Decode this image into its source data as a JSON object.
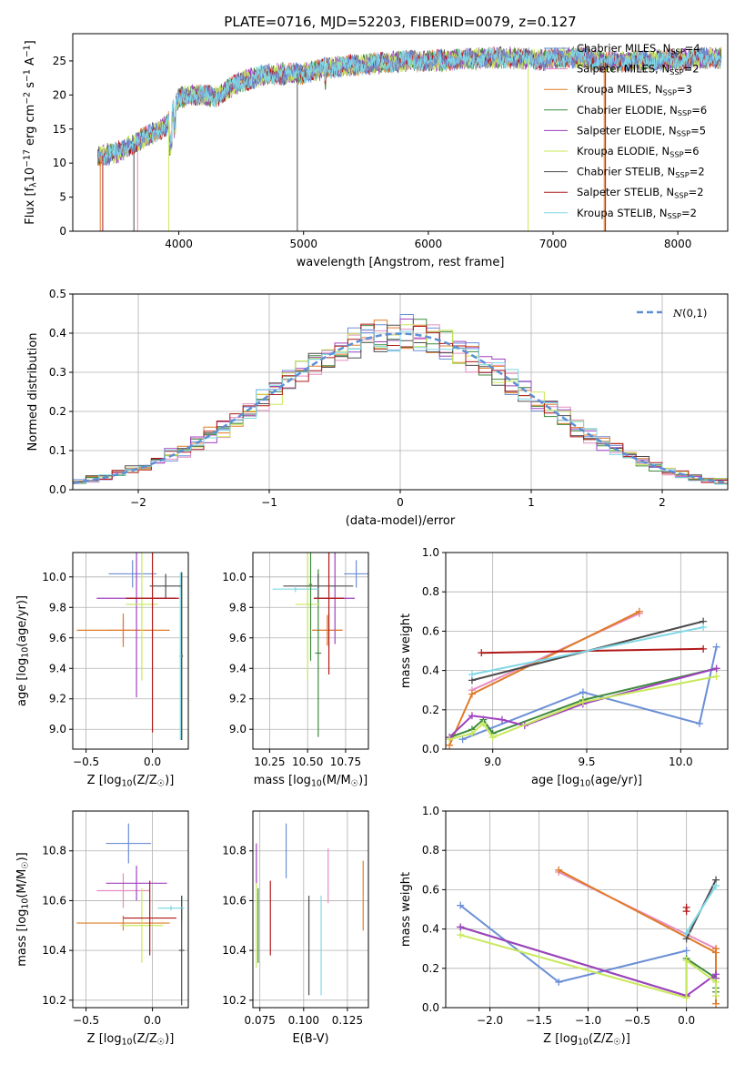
{
  "figure": {
    "title": "PLATE=0716, MJD=52203, FIBERID=0079, z=0.127"
  },
  "series_styles": [
    {
      "name": "Chabrier MILES, N$_{SSP}$=4",
      "color": "#6b8fd6"
    },
    {
      "name": "Salpeter MILES, N$_{SSP}$=2",
      "color": "#e58ec1"
    },
    {
      "name": "Kroupa MILES, N$_{SSP}$=3",
      "color": "#e07b28"
    },
    {
      "name": "Chabrier ELODIE, N$_{SSP}$=6",
      "color": "#3e8a3e"
    },
    {
      "name": "Salpeter ELODIE, N$_{SSP}$=5",
      "color": "#a040c0"
    },
    {
      "name": "Kroupa ELODIE, N$_{SSP}$=6",
      "color": "#c9e85a"
    },
    {
      "name": "Chabrier STELIB, N$_{SSP}$=2",
      "color": "#4d4d4d"
    },
    {
      "name": "Salpeter STELIB, N$_{SSP}$=2",
      "color": "#b01818"
    },
    {
      "name": "Kroupa STELIB, N$_{SSP}$=2",
      "color": "#7fd8e6"
    }
  ],
  "chart_data": [
    {
      "id": "spectrum",
      "type": "line",
      "xlabel": "wavelength [Angstrom, rest frame]",
      "ylabel": "Flux [f$_\\lambda$10$^{-17}$ erg cm$^{-2}$ s$^{-1}$ A$^{-1}$]",
      "xlim": [
        3150,
        8400
      ],
      "ylim": [
        0,
        29
      ],
      "xticks": [
        4000,
        5000,
        6000,
        7000,
        8000
      ],
      "yticks": [
        0,
        5,
        10,
        15,
        20,
        25
      ],
      "grid": false,
      "legend": "right",
      "x": [
        3350,
        3500,
        3700,
        3900,
        4000,
        4100,
        4300,
        4500,
        4700,
        5000,
        5200,
        5500,
        5800,
        6000,
        6300,
        6600,
        6900,
        7200,
        7400,
        7700,
        8000,
        8300
      ],
      "y": [
        11.0,
        11.5,
        13.5,
        15.5,
        19.5,
        20.0,
        19.8,
        22.0,
        23.0,
        23.2,
        24.0,
        24.5,
        25.0,
        25.0,
        25.3,
        25.5,
        25.2,
        25.6,
        24.8,
        25.0,
        25.2,
        25.5
      ]
    },
    {
      "id": "residual_hist",
      "type": "line",
      "xlabel": "(data-model)/error",
      "ylabel": "Normed distribution",
      "xlim": [
        -2.5,
        2.5
      ],
      "ylim": [
        0,
        0.5
      ],
      "xticks": [
        -2,
        -1,
        0,
        1,
        2
      ],
      "yticks": [
        0.0,
        0.1,
        0.2,
        0.3,
        0.4,
        0.5
      ],
      "grid": true,
      "legend": "top-right",
      "legend_label": "$\\mathcal{N}(0,1)$",
      "histogram_bin_width": 0.1
    },
    {
      "id": "age_vs_Z",
      "type": "scatter",
      "xlabel": "Z [log$_{10}$(Z/Z$_\\odot$)]",
      "ylabel": "age  [log$_{10}$(age/yr)]",
      "xlim": [
        -0.6,
        0.27
      ],
      "ylim": [
        8.87,
        10.16
      ],
      "xticks": [
        -0.5,
        0.0
      ],
      "yticks": [
        9.0,
        9.2,
        9.4,
        9.6,
        9.8,
        10.0
      ],
      "grid": true,
      "points": [
        {
          "s": 0,
          "x": -0.15,
          "y": 10.02,
          "xerr": 0.18,
          "yerr": 0.09
        },
        {
          "s": 1,
          "x": -0.22,
          "y": 9.65,
          "xerr": 0.12,
          "yerr": 0.08
        },
        {
          "s": 2,
          "x": -0.22,
          "y": 9.65,
          "xerr": 0.35,
          "yerr": 0.11
        },
        {
          "s": 3,
          "x": 0.22,
          "y": 9.48,
          "xerr": 0.01,
          "yerr": 0.55
        },
        {
          "s": 4,
          "x": -0.12,
          "y": 9.86,
          "xerr": 0.3,
          "yerr": 0.65
        },
        {
          "s": 5,
          "x": -0.08,
          "y": 9.82,
          "xerr": 0.12,
          "yerr": 0.5
        },
        {
          "s": 6,
          "x": 0.22,
          "y": 9.48,
          "xerr": 0.01,
          "yerr": 0.55
        },
        {
          "s": 7,
          "x": 0.0,
          "y": 9.86,
          "xerr": 0.2,
          "yerr": 0.88
        },
        {
          "s": 8,
          "x": 0.21,
          "y": 9.48,
          "xerr": 0.01,
          "yerr": 0.55
        },
        {
          "s": 6,
          "x": 0.1,
          "y": 9.94,
          "xerr": 0.12,
          "yerr": 0.08
        }
      ]
    },
    {
      "id": "age_vs_mass",
      "type": "scatter",
      "xlabel": "mass [log$_{10}$(M/M$_\\odot$)]",
      "ylabel": "",
      "xlim": [
        10.14,
        10.9
      ],
      "ylim": [
        8.87,
        10.16
      ],
      "xticks": [
        10.25,
        10.5,
        10.75
      ],
      "yticks": [
        9.0,
        9.2,
        9.4,
        9.6,
        9.8,
        10.0
      ],
      "grid": true,
      "points": [
        {
          "s": 0,
          "x": 10.82,
          "y": 10.02,
          "xerr": 0.08,
          "yerr": 0.09
        },
        {
          "s": 1,
          "x": 10.63,
          "y": 9.65,
          "xerr": 0.1,
          "yerr": 0.1
        },
        {
          "s": 2,
          "x": 10.63,
          "y": 9.65,
          "xerr": 0.1,
          "yerr": 0.1
        },
        {
          "s": 3,
          "x": 10.57,
          "y": 9.5,
          "xerr": 0.02,
          "yerr": 0.55
        },
        {
          "s": 4,
          "x": 10.68,
          "y": 9.86,
          "xerr": 0.13,
          "yerr": 0.3
        },
        {
          "s": 5,
          "x": 10.5,
          "y": 9.82,
          "xerr": 0.08,
          "yerr": 0.5
        },
        {
          "s": 6,
          "x": 10.57,
          "y": 9.94,
          "xerr": 0.23,
          "yerr": 0.08
        },
        {
          "s": 7,
          "x": 10.64,
          "y": 9.86,
          "xerr": 0.1,
          "yerr": 0.5
        },
        {
          "s": 8,
          "x": 10.42,
          "y": 9.92,
          "xerr": 0.15,
          "yerr": 0.02
        },
        {
          "s": 3,
          "x": 10.52,
          "y": 9.95,
          "xerr": 0.01,
          "yerr": 0.5
        }
      ]
    },
    {
      "id": "massweight_vs_age",
      "type": "line",
      "xlabel": "age  [log$_{10}$(age/yr)]",
      "ylabel": "mass weight",
      "xlim": [
        8.75,
        10.25
      ],
      "ylim": [
        0,
        1
      ],
      "xticks": [
        9.0,
        9.5,
        10.0
      ],
      "yticks": [
        0.0,
        0.2,
        0.4,
        0.6,
        0.8,
        1.0
      ],
      "grid": true,
      "series": [
        {
          "s": 0,
          "x": [
            8.84,
            9.48,
            10.1,
            10.19
          ],
          "y": [
            0.05,
            0.29,
            0.13,
            0.52
          ]
        },
        {
          "s": 1,
          "x": [
            8.89,
            9.78
          ],
          "y": [
            0.3,
            0.69
          ]
        },
        {
          "s": 2,
          "x": [
            8.77,
            8.89,
            9.78
          ],
          "y": [
            0.02,
            0.28,
            0.7
          ]
        },
        {
          "s": 3,
          "x": [
            8.77,
            8.89,
            8.95,
            9.0,
            9.48,
            10.19
          ],
          "y": [
            0.06,
            0.1,
            0.15,
            0.08,
            0.25,
            0.41
          ]
        },
        {
          "s": 4,
          "x": [
            8.77,
            8.89,
            9.05,
            9.17,
            9.48,
            10.19
          ],
          "y": [
            0.06,
            0.17,
            0.15,
            0.12,
            0.23,
            0.41
          ]
        },
        {
          "s": 5,
          "x": [
            8.77,
            8.89,
            8.95,
            9.0,
            9.48,
            10.19
          ],
          "y": [
            0.05,
            0.08,
            0.13,
            0.06,
            0.24,
            0.37
          ]
        },
        {
          "s": 6,
          "x": [
            8.89,
            10.12
          ],
          "y": [
            0.35,
            0.65
          ]
        },
        {
          "s": 7,
          "x": [
            8.94,
            10.12
          ],
          "y": [
            0.49,
            0.51
          ]
        },
        {
          "s": 8,
          "x": [
            8.89,
            10.12
          ],
          "y": [
            0.38,
            0.62
          ]
        }
      ]
    },
    {
      "id": "mass_vs_Z",
      "type": "scatter",
      "xlabel": "Z [log$_{10}$(Z/Z$_\\odot$)]",
      "ylabel": "mass [log$_{10}$(M/M$_\\odot$)]",
      "xlim": [
        -0.6,
        0.27
      ],
      "ylim": [
        10.17,
        10.96
      ],
      "xticks": [
        -0.5,
        0.0
      ],
      "yticks": [
        10.2,
        10.4,
        10.6,
        10.8
      ],
      "grid": true,
      "points": [
        {
          "s": 0,
          "x": -0.18,
          "y": 10.83,
          "xerr": 0.17,
          "yerr": 0.08
        },
        {
          "s": 1,
          "x": -0.22,
          "y": 10.64,
          "xerr": 0.2,
          "yerr": 0.07
        },
        {
          "s": 2,
          "x": -0.22,
          "y": 10.51,
          "xerr": 0.35,
          "yerr": 0.03
        },
        {
          "s": 3,
          "x": 0.22,
          "y": 10.57,
          "xerr": 0.01,
          "yerr": 0.05
        },
        {
          "s": 4,
          "x": -0.12,
          "y": 10.67,
          "xerr": 0.23,
          "yerr": 0.07
        },
        {
          "s": 5,
          "x": -0.08,
          "y": 10.5,
          "xerr": 0.16,
          "yerr": 0.15
        },
        {
          "s": 6,
          "x": 0.22,
          "y": 10.4,
          "xerr": 0.02,
          "yerr": 0.22
        },
        {
          "s": 7,
          "x": -0.02,
          "y": 10.53,
          "xerr": 0.2,
          "yerr": 0.15
        },
        {
          "s": 8,
          "x": 0.14,
          "y": 10.57,
          "xerr": 0.1,
          "yerr": 0.01
        }
      ]
    },
    {
      "id": "mass_vs_EBV",
      "type": "scatter",
      "xlabel": "E(B-V)",
      "ylabel": "",
      "xlim": [
        0.071,
        0.137
      ],
      "ylim": [
        10.17,
        10.96
      ],
      "xticks": [
        0.075,
        0.1,
        0.125
      ],
      "yticks": [
        10.2,
        10.4,
        10.6,
        10.8
      ],
      "grid": true,
      "points": [
        {
          "s": 0,
          "x": 0.09,
          "y": 10.8,
          "yerr": 0.11
        },
        {
          "s": 1,
          "x": 0.114,
          "y": 10.7,
          "yerr": 0.11
        },
        {
          "s": 2,
          "x": 0.134,
          "y": 10.62,
          "yerr": 0.14
        },
        {
          "s": 3,
          "x": 0.074,
          "y": 10.5,
          "yerr": 0.15
        },
        {
          "s": 4,
          "x": 0.073,
          "y": 10.75,
          "yerr": 0.08
        },
        {
          "s": 5,
          "x": 0.073,
          "y": 10.5,
          "yerr": 0.17
        },
        {
          "s": 6,
          "x": 0.103,
          "y": 10.42,
          "yerr": 0.2
        },
        {
          "s": 7,
          "x": 0.081,
          "y": 10.53,
          "yerr": 0.15
        },
        {
          "s": 8,
          "x": 0.11,
          "y": 10.42,
          "yerr": 0.2
        }
      ]
    },
    {
      "id": "massweight_vs_Z",
      "type": "line",
      "xlabel": "Z [log$_{10}$(Z/Z$_\\odot$)]",
      "ylabel": "mass weight",
      "xlim": [
        -2.45,
        0.42
      ],
      "ylim": [
        0,
        1
      ],
      "xticks": [
        -2.0,
        -1.5,
        -1.0,
        -0.5,
        0.0
      ],
      "yticks": [
        0.0,
        0.2,
        0.4,
        0.6,
        0.8,
        1.0
      ],
      "grid": true,
      "series": [
        {
          "s": 0,
          "x": [
            -2.3,
            -1.3,
            0.0
          ],
          "y": [
            0.52,
            0.13,
            0.29
          ]
        },
        {
          "s": 1,
          "x": [
            -1.3,
            0.3
          ],
          "y": [
            0.69,
            0.3
          ]
        },
        {
          "s": 2,
          "x": [
            -1.3,
            0.3,
            0.3,
            0.3
          ],
          "y": [
            0.7,
            0.28,
            0.02,
            0.3
          ]
        },
        {
          "s": 3,
          "x": [
            -2.3,
            0.0,
            0.0,
            0.3,
            0.3,
            0.3
          ],
          "y": [
            0.41,
            0.06,
            0.25,
            0.15,
            0.08,
            0.1
          ]
        },
        {
          "s": 4,
          "x": [
            -2.3,
            0.0,
            0.3,
            0.3
          ],
          "y": [
            0.41,
            0.06,
            0.17,
            0.15
          ]
        },
        {
          "s": 5,
          "x": [
            -2.3,
            0.0,
            0.0,
            0.3,
            0.3
          ],
          "y": [
            0.37,
            0.05,
            0.24,
            0.13,
            0.06
          ]
        },
        {
          "s": 6,
          "x": [
            0.0,
            0.3
          ],
          "y": [
            0.35,
            0.65
          ]
        },
        {
          "s": 7,
          "x": [
            0.0,
            0.0
          ],
          "y": [
            0.49,
            0.51
          ]
        },
        {
          "s": 8,
          "x": [
            0.0,
            0.3
          ],
          "y": [
            0.38,
            0.62
          ]
        }
      ]
    }
  ]
}
